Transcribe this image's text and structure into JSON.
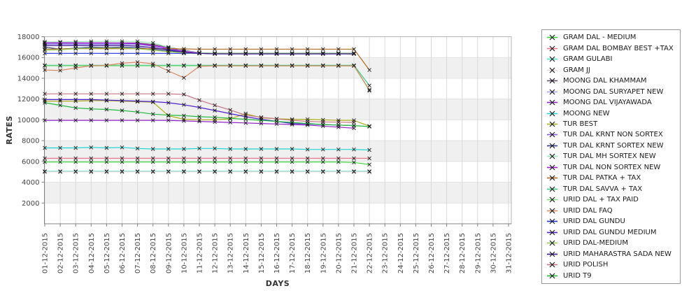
{
  "chart_data": {
    "type": "line",
    "title": "",
    "xlabel": "DAYS",
    "ylabel": "RATES",
    "ylim": [
      0,
      18000
    ],
    "y_ticks": [
      2000,
      4000,
      6000,
      8000,
      10000,
      12000,
      14000,
      16000,
      18000
    ],
    "x_tick_labels": [
      "01-12-2015",
      "02-12-2015",
      "03-12-2015",
      "04-12-2015",
      "05-12-2015",
      "06-12-2015",
      "07-12-2015",
      "08-12-2015",
      "09-12-2015",
      "10-12-2015",
      "11-12-2015",
      "12-12-2015",
      "13-12-2015",
      "14-12-2015",
      "15-12-2015",
      "16-12-2015",
      "17-12-2015",
      "18-12-2015",
      "19-12-2015",
      "20-12-2015",
      "21-12-2015",
      "22-12-2015",
      "23-12-2015",
      "24-12-2015",
      "25-12-2015",
      "26-12-2015",
      "27-12-2015",
      "28-12-2015",
      "29-12-2015",
      "30-12-2015",
      "31-12-2015"
    ],
    "grid": {
      "vertical_gridlines": true,
      "horizontal_bands": true,
      "band_step": 2000,
      "band_fill": "#f0f0f0"
    },
    "legend_position": "right",
    "marker": "x",
    "series": [
      {
        "name": "GRAM DAL - MEDIUM",
        "color": "#3cd63c",
        "values": [
          5950,
          5950,
          5950,
          5950,
          5950,
          5950,
          5950,
          5950,
          5950,
          5950,
          5950,
          5950,
          5950,
          5950,
          5950,
          5950,
          5950,
          5950,
          5950,
          5950,
          5900,
          5700
        ]
      },
      {
        "name": "GRAM DAL BOMBAY BEST +TAX",
        "color": "#e87a8f",
        "values": [
          6300,
          6300,
          6300,
          6300,
          6300,
          6300,
          6300,
          6300,
          6300,
          6300,
          6300,
          6300,
          6300,
          6300,
          6300,
          6300,
          6300,
          6300,
          6300,
          6300,
          6300,
          6300
        ]
      },
      {
        "name": "GRAM GULABI",
        "color": "#52e0c8",
        "values": [
          5050,
          5050,
          5050,
          5050,
          5050,
          5050,
          5050,
          5050,
          5050,
          5050,
          5050,
          5050,
          5050,
          5050,
          5050,
          5050,
          5050,
          5050,
          5050,
          5050,
          5050,
          5050
        ]
      },
      {
        "name": "GRAM JJ",
        "color": "#e8d6da",
        "values": [
          5000,
          5000,
          5000,
          5000,
          5000,
          5000,
          5000,
          5000,
          5000,
          5000,
          5000,
          5000,
          5000,
          5000,
          5000,
          5000,
          5000,
          5000,
          5000,
          5000,
          5000,
          5000
        ]
      },
      {
        "name": "MOONG DAL KHAMMAM",
        "color": "#6e4d73",
        "values": [
          17400,
          17400,
          17400,
          17400,
          17400,
          17400,
          17400,
          17250,
          17000,
          16700,
          16450,
          16400,
          16400,
          16400,
          16400,
          16400,
          16400,
          16400,
          16400,
          16400,
          16400
        ]
      },
      {
        "name": "MOONG DAL SURYAPET NEW",
        "color": "#a6a6e6",
        "values": [
          17250,
          17250,
          17250,
          17250,
          17250,
          17250,
          17250,
          17100,
          16900,
          16600,
          16420,
          16380,
          16380,
          16380,
          16380,
          16380,
          16380,
          16380,
          16380,
          16380,
          16380
        ]
      },
      {
        "name": "MOONG DAL VIJAYAWADA",
        "color": "#9122c7",
        "values": [
          9950,
          9950,
          9950,
          9950,
          9950,
          9950,
          9950,
          9950,
          9950,
          9900,
          9850,
          9800,
          9750,
          9700,
          9650,
          9600,
          9550,
          9500,
          9400,
          9300,
          9200
        ]
      },
      {
        "name": "MOONG NEW",
        "color": "#1fd4d4",
        "values": [
          7300,
          7300,
          7300,
          7350,
          7300,
          7350,
          7250,
          7200,
          7200,
          7200,
          7250,
          7250,
          7200,
          7200,
          7200,
          7200,
          7200,
          7150,
          7150,
          7150,
          7150,
          7100
        ]
      },
      {
        "name": "TUR BEST",
        "color": "#aeae1e",
        "values": [
          11800,
          11800,
          11800,
          11850,
          11850,
          11800,
          11750,
          11700,
          10400,
          10050,
          10000,
          10000,
          10100,
          10600,
          10200,
          10100,
          10050,
          10050,
          10000,
          9950,
          9950,
          9400
        ]
      },
      {
        "name": "TUR DAL KRNT NON SORTEX",
        "color": "#8a5ce8",
        "values": [
          17350,
          17350,
          17350,
          17350,
          17350,
          17350,
          17300,
          17100,
          16850,
          16550,
          16420,
          16380,
          16380,
          16380,
          16380,
          16380,
          16380,
          16380,
          16380,
          16380,
          16380
        ]
      },
      {
        "name": "TUR DAL KRNT SORTEX NEW",
        "color": "#2e3f8f",
        "values": [
          17000,
          16800,
          16900,
          17000,
          16950,
          17000,
          16950,
          16800,
          16650,
          16500,
          16400,
          16350,
          16350,
          16350,
          16350,
          16350,
          16350,
          16350,
          16350,
          16350,
          16350
        ]
      },
      {
        "name": "TUR DAL MH SORTEX NEW",
        "color": "#a0eab8",
        "values": [
          17500,
          17500,
          17520,
          17540,
          17550,
          17550,
          17550,
          17400,
          17000,
          16650,
          16450,
          16420,
          16420,
          16420,
          16420,
          16420,
          16420,
          16420,
          16420,
          16420,
          16420
        ]
      },
      {
        "name": "TUR DAL NON SORTEX NEW",
        "color": "#a81fd8",
        "values": [
          17400,
          17420,
          17400,
          17400,
          17400,
          17380,
          17350,
          17150,
          16900,
          16600,
          16420,
          16360,
          16360,
          16360,
          16360,
          16360,
          16360,
          16360,
          16360,
          16360,
          16360
        ]
      },
      {
        "name": "TUR DAL PATKA + TAX",
        "color": "#b06a1f",
        "values": [
          16800,
          16820,
          16850,
          16850,
          16850,
          16850,
          16850,
          16850,
          16850,
          16820,
          16800,
          16800,
          16800,
          16800,
          16800,
          16800,
          16800,
          16800,
          16800,
          16800,
          16800,
          14800
        ]
      },
      {
        "name": "TUR DAL SAVVA + TAX",
        "color": "#3fc98a",
        "values": [
          15250,
          15250,
          15250,
          15250,
          15250,
          15250,
          15250,
          15250,
          15250,
          15250,
          15250,
          15250,
          15250,
          15250,
          15250,
          15250,
          15250,
          15250,
          15250,
          15250,
          15250,
          13300
        ]
      },
      {
        "name": "URID DAL + TAX PAID",
        "color": "#7fdd7f",
        "values": [
          15200,
          15200,
          15200,
          15200,
          15200,
          15200,
          15200,
          15200,
          15200,
          15200,
          15200,
          15200,
          15200,
          15200,
          15200,
          15200,
          15200,
          15200,
          15200,
          15200,
          15200,
          12800
        ]
      },
      {
        "name": "URID DAL FAQ",
        "color": "#d98a63",
        "values": [
          14800,
          14750,
          15000,
          15200,
          15250,
          15450,
          15550,
          15400,
          14700,
          14050,
          15150,
          15200,
          15200,
          15200,
          15200,
          15200,
          15200,
          15200,
          15200,
          15200,
          15200,
          12900
        ]
      },
      {
        "name": "URID DAL GUNDU",
        "color": "#1f2fe0",
        "values": [
          16400,
          16400,
          16400,
          16400,
          16400,
          16400,
          16400,
          16400,
          16400,
          16400,
          16400,
          16400,
          16400,
          16400,
          16400,
          16400,
          16400,
          16400,
          16400,
          16400,
          16400
        ]
      },
      {
        "name": "URID DAL GUNDU MEDIUM",
        "color": "#4d1fd0",
        "values": [
          11950,
          11950,
          11950,
          11950,
          11900,
          11850,
          11800,
          11750,
          11650,
          11450,
          11200,
          10900,
          10600,
          10300,
          10050,
          9850,
          9650,
          9600,
          9550,
          9500,
          9450
        ]
      },
      {
        "name": "URID DAL-MEDIUM",
        "color": "#97cc4e",
        "values": [
          16700,
          16750,
          16850,
          16900,
          16900,
          16900,
          16850,
          16700,
          16550,
          16450,
          16400,
          16400,
          16400,
          16400,
          16400,
          16400,
          16400,
          16400,
          16400,
          16400,
          16400
        ]
      },
      {
        "name": "URID MAHARASTRA SADA NEW",
        "color": "#3d1694",
        "values": [
          17150,
          17150,
          17150,
          17150,
          17150,
          17150,
          17100,
          16950,
          16750,
          16500,
          16400,
          16350,
          16350,
          16350,
          16350,
          16350,
          16350,
          16350,
          16350,
          16350,
          16350
        ]
      },
      {
        "name": "URID POLISH",
        "color": "#c47583",
        "values": [
          12500,
          12500,
          12500,
          12500,
          12500,
          12500,
          12500,
          12500,
          12500,
          12450,
          11900,
          11400,
          10950,
          10450,
          10250,
          10100,
          9950,
          9850,
          9800,
          9780,
          9750
        ]
      },
      {
        "name": "URID T9",
        "color": "#1fba3d",
        "values": [
          11650,
          11400,
          11150,
          11050,
          11000,
          10900,
          10750,
          10550,
          10450,
          10400,
          10300,
          10250,
          10150,
          10050,
          9950,
          9850,
          9750,
          9650,
          9550,
          9500,
          9450,
          9350
        ]
      }
    ]
  }
}
